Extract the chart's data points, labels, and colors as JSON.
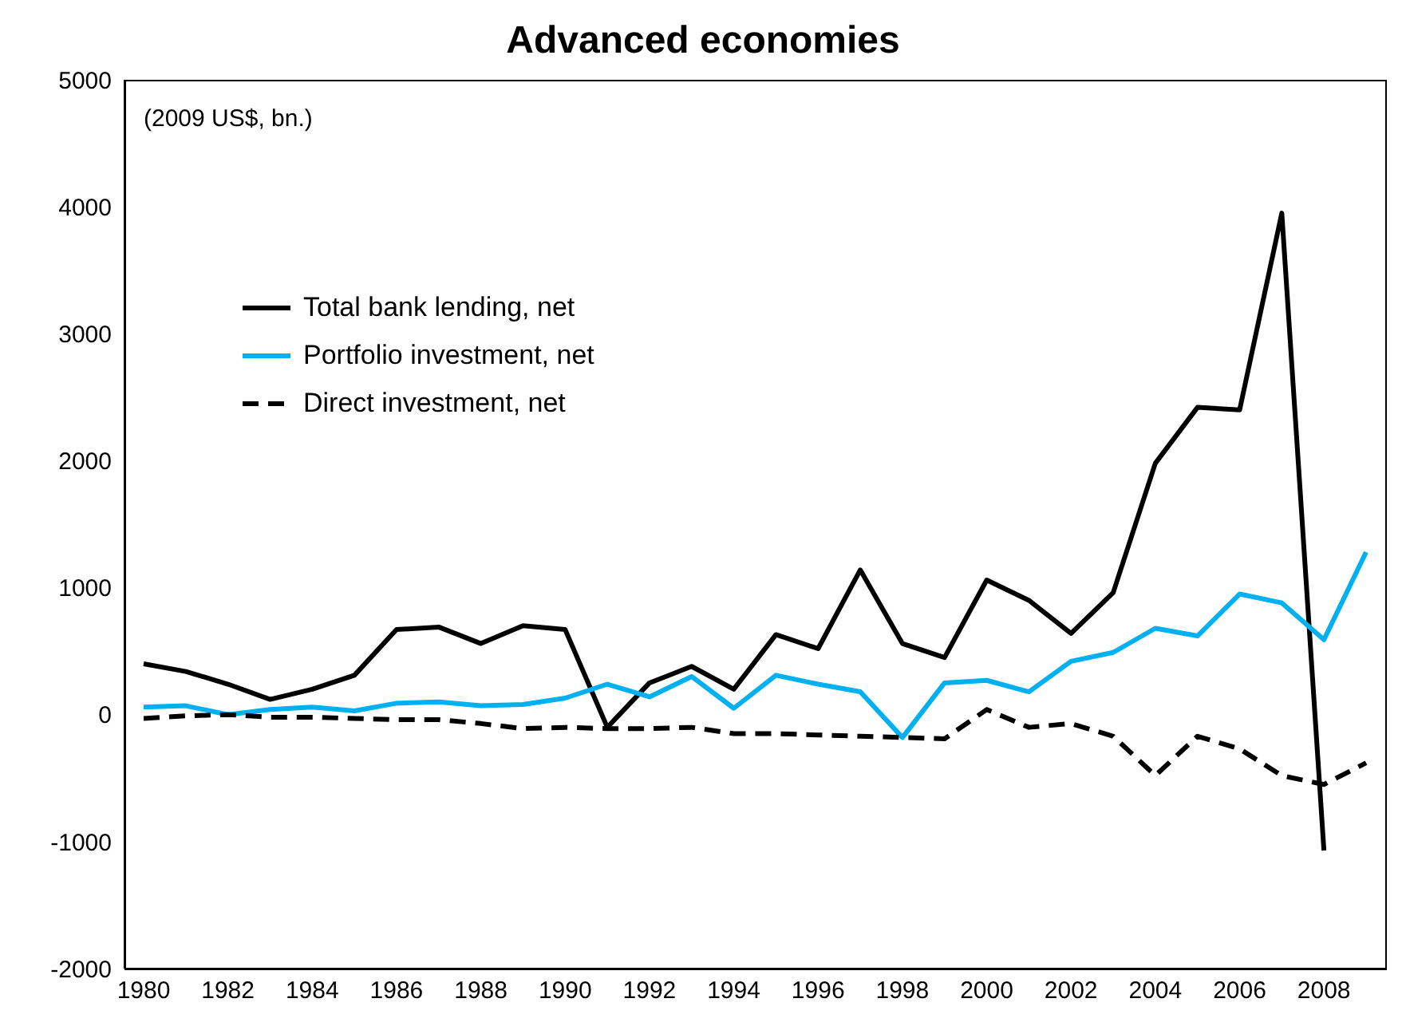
{
  "chart_data": {
    "type": "line",
    "title": "Advanced economies",
    "annotations": [
      "(2009 US$, bn.)"
    ],
    "categories": [
      "1980",
      null,
      "1982",
      null,
      "1984",
      null,
      "1986",
      null,
      "1988",
      null,
      "1990",
      null,
      "1992",
      null,
      "1994",
      null,
      "1996",
      null,
      "1998",
      null,
      "2000",
      null,
      "2002",
      null,
      "2004",
      null,
      "2006",
      null,
      "2008",
      null
    ],
    "series": [
      {
        "name": "Total bank lending, net",
        "color": "#000000",
        "line_style": "solid",
        "values": [
          400,
          340,
          240,
          120,
          200,
          310,
          670,
          690,
          560,
          700,
          670,
          -100,
          250,
          380,
          200,
          630,
          520,
          1140,
          560,
          450,
          1060,
          900,
          640,
          960,
          1980,
          2420,
          2400,
          3950,
          -1070,
          null
        ]
      },
      {
        "name": "Portfolio investment, net",
        "color": "#00b0f0",
        "line_style": "solid",
        "values": [
          60,
          70,
          0,
          40,
          60,
          30,
          90,
          100,
          70,
          80,
          130,
          240,
          140,
          300,
          50,
          310,
          240,
          180,
          -180,
          250,
          270,
          180,
          420,
          490,
          680,
          620,
          950,
          880,
          590,
          1280
        ]
      },
      {
        "name": "Direct investment, net",
        "color": "#000000",
        "line_style": "dashed",
        "values": [
          -30,
          -10,
          0,
          -20,
          -20,
          -30,
          -40,
          -40,
          -70,
          -110,
          -100,
          -110,
          -110,
          -100,
          -150,
          -150,
          -160,
          -170,
          -180,
          -190,
          40,
          -100,
          -70,
          -170,
          -480,
          -170,
          -270,
          -480,
          -550,
          -380
        ]
      }
    ],
    "ylim": [
      -2000,
      5000
    ],
    "yticks": [
      -2000,
      -1000,
      0,
      1000,
      2000,
      3000,
      4000,
      5000
    ],
    "grid": false,
    "legend": "top left",
    "marker": "none"
  }
}
